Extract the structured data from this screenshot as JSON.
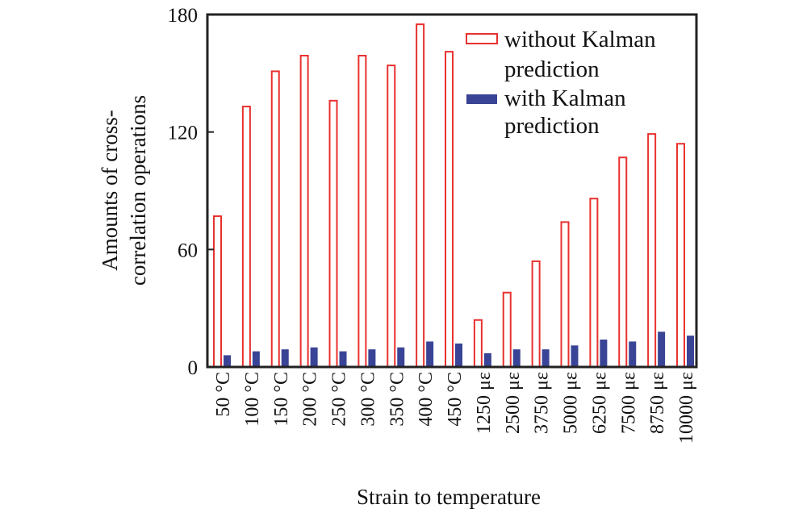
{
  "chart_data": {
    "type": "bar",
    "xlabel": "Strain to temperature",
    "ylabel_lines": [
      "Amounts of cross-",
      "correlation operations"
    ],
    "categories": [
      "50 °C",
      "100 °C",
      "150 °C",
      "200 °C",
      "250 °C",
      "300 °C",
      "350 °C",
      "400 °C",
      "450 °C",
      "1250 με",
      "2500 με",
      "3750 με",
      "5000 με",
      "6250 με",
      "7500 με",
      "8750 με",
      "10000 με"
    ],
    "yticks": [
      "0",
      "60",
      "120",
      "180"
    ],
    "ylim": [
      0,
      180
    ],
    "grid": false,
    "legend_position": "top-right",
    "series": [
      {
        "name_lines": [
          "without Kalman",
          "prediction"
        ],
        "style": "outline",
        "color": "#e8312f",
        "values": [
          77,
          133,
          151,
          159,
          136,
          159,
          154,
          175,
          161,
          24,
          38,
          54,
          74,
          86,
          107,
          119,
          114
        ]
      },
      {
        "name_lines": [
          "with Kalman",
          "prediction"
        ],
        "style": "filled",
        "color": "#3a4496",
        "values": [
          6,
          8,
          9,
          10,
          8,
          9,
          10,
          13,
          12,
          7,
          9,
          9,
          11,
          14,
          13,
          18,
          16
        ]
      }
    ]
  }
}
